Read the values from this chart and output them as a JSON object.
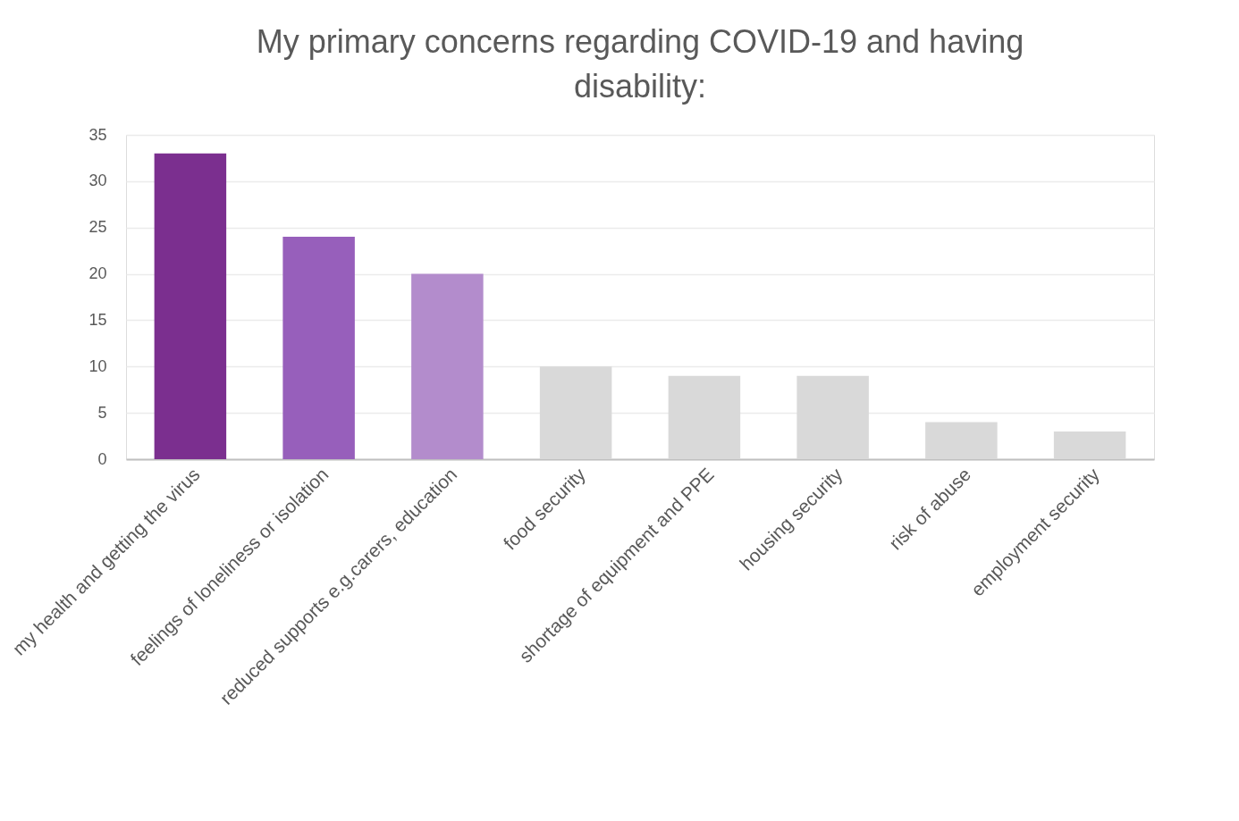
{
  "chart_data": {
    "type": "bar",
    "title": "My primary concerns regarding COVID-19 and having disability:",
    "categories": [
      "my health and getting the virus",
      "feelings of loneliness or isolation",
      "reduced supports e.g.carers, education",
      "food security",
      "shortage of equipment and PPE",
      "housing security",
      "risk of abuse",
      "employment security"
    ],
    "values": [
      33,
      24,
      20,
      10,
      9,
      9,
      4,
      3
    ],
    "colors": [
      "#7b2f8f",
      "#975fbb",
      "#b38ccc",
      "#d9d9d9",
      "#d9d9d9",
      "#d9d9d9",
      "#d9d9d9",
      "#d9d9d9"
    ],
    "ylim": [
      0,
      35
    ],
    "yticks": [
      0,
      5,
      10,
      15,
      20,
      25,
      30,
      35
    ],
    "grid": "y",
    "legend": false
  }
}
